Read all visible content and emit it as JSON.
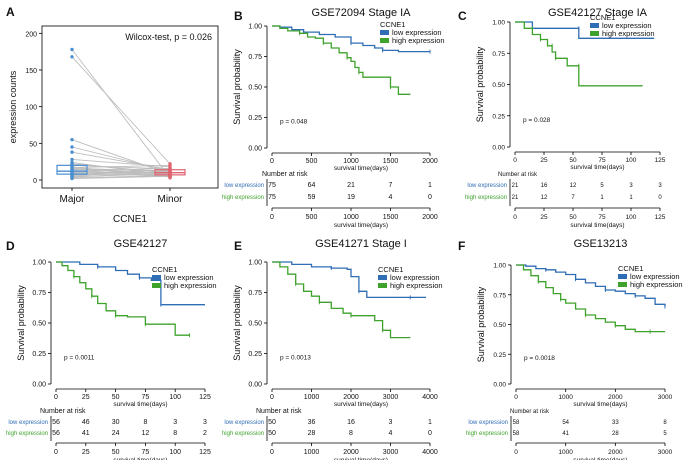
{
  "colors": {
    "low": "#2f6db5",
    "high": "#3ea22c",
    "major": "#4a90d0",
    "minor": "#e06470",
    "line": "#bdbdbd",
    "axis": "#000000"
  },
  "chart_data": [
    {
      "panel": "A",
      "type": "paired-boxplot",
      "title": "",
      "annotation": "Wilcox-test, p = 0.026",
      "xlabel": "CCNE1",
      "ylabel": "expression counts",
      "categories": [
        "Major",
        "Minor"
      ],
      "ylim": [
        0,
        210
      ],
      "yticks": [
        0,
        50,
        100,
        150,
        200
      ],
      "pairs": [
        [
          178,
          3
        ],
        [
          168,
          22
        ],
        [
          55,
          8
        ],
        [
          45,
          12
        ],
        [
          38,
          14
        ],
        [
          28,
          18
        ],
        [
          24,
          6
        ],
        [
          22,
          10
        ],
        [
          20,
          15
        ],
        [
          18,
          4
        ],
        [
          17,
          20
        ],
        [
          16,
          12
        ],
        [
          15,
          9
        ],
        [
          14,
          13
        ],
        [
          13,
          7
        ],
        [
          12,
          16
        ],
        [
          11,
          10
        ],
        [
          10,
          5
        ],
        [
          9,
          11
        ],
        [
          8,
          14
        ],
        [
          7,
          9
        ],
        [
          6,
          12
        ],
        [
          5,
          8
        ],
        [
          4,
          10
        ],
        [
          3,
          6
        ],
        [
          2,
          5
        ]
      ],
      "box_major": {
        "q1": 8,
        "median": 12,
        "q3": 20,
        "whisker_low": 2,
        "whisker_high": 24
      },
      "box_minor": {
        "q1": 7,
        "median": 10,
        "q3": 14,
        "whisker_low": 3,
        "whisker_high": 22
      }
    },
    {
      "panel": "B",
      "type": "line",
      "title": "GSE72094 Stage IA",
      "xlabel": "survival time(days)",
      "ylabel": "Survival probability",
      "xlim": [
        0,
        2000
      ],
      "xticks": [
        0,
        500,
        1000,
        1500,
        2000
      ],
      "ylim": [
        0,
        1
      ],
      "yticks": [
        "0.00",
        "0.25",
        "0.50",
        "0.75",
        "1.00"
      ],
      "legend_title": "CCNE1",
      "legend": [
        "low expression",
        "high expression"
      ],
      "pvalue": "p = 0.048",
      "series": [
        {
          "name": "low expression",
          "points": [
            [
              0,
              1
            ],
            [
              100,
              0.99
            ],
            [
              250,
              0.97
            ],
            [
              400,
              0.95
            ],
            [
              600,
              0.93
            ],
            [
              800,
              0.91
            ],
            [
              1000,
              0.86
            ],
            [
              1150,
              0.84
            ],
            [
              1300,
              0.82
            ],
            [
              1400,
              0.8
            ],
            [
              1600,
              0.79
            ],
            [
              1800,
              0.79
            ],
            [
              2000,
              0.79
            ]
          ]
        },
        {
          "name": "high expression",
          "points": [
            [
              0,
              1
            ],
            [
              100,
              0.98
            ],
            [
              200,
              0.96
            ],
            [
              350,
              0.94
            ],
            [
              450,
              0.91
            ],
            [
              550,
              0.9
            ],
            [
              650,
              0.86
            ],
            [
              750,
              0.82
            ],
            [
              850,
              0.78
            ],
            [
              950,
              0.74
            ],
            [
              1000,
              0.71
            ],
            [
              1050,
              0.66
            ],
            [
              1100,
              0.62
            ],
            [
              1150,
              0.58
            ],
            [
              1400,
              0.58
            ],
            [
              1500,
              0.5
            ],
            [
              1600,
              0.44
            ],
            [
              1750,
              0.44
            ]
          ]
        }
      ],
      "risk_table": {
        "title": "Number at risk",
        "rows": [
          {
            "label": "low expression",
            "values": [
              "75",
              "64",
              "21",
              "7",
              "1"
            ]
          },
          {
            "label": "high expression",
            "values": [
              "75",
              "59",
              "19",
              "4",
              "0"
            ]
          }
        ]
      }
    },
    {
      "panel": "C",
      "type": "line",
      "title": "GSE42127 Stage IA",
      "xlabel": "survival time(days)",
      "ylabel": "Survival probability",
      "xlim": [
        0,
        125
      ],
      "xticks": [
        0,
        25,
        50,
        75,
        100,
        125
      ],
      "ylim": [
        0,
        1
      ],
      "yticks": [
        "0.00",
        "0.25",
        "0.50",
        "0.75",
        "1.00"
      ],
      "legend_title": "CCNE1",
      "legend": [
        "low expression",
        "high expression"
      ],
      "pvalue": "p = 0.028",
      "series": [
        {
          "name": "low expression",
          "points": [
            [
              0,
              1
            ],
            [
              15,
              1
            ],
            [
              15,
              0.95
            ],
            [
              55,
              0.95
            ],
            [
              55,
              0.87
            ],
            [
              120,
              0.87
            ]
          ]
        },
        {
          "name": "high expression",
          "points": [
            [
              0,
              1
            ],
            [
              8,
              1
            ],
            [
              8,
              0.95
            ],
            [
              15,
              0.95
            ],
            [
              15,
              0.9
            ],
            [
              22,
              0.9
            ],
            [
              22,
              0.86
            ],
            [
              28,
              0.86
            ],
            [
              28,
              0.81
            ],
            [
              32,
              0.81
            ],
            [
              32,
              0.76
            ],
            [
              35,
              0.76
            ],
            [
              35,
              0.71
            ],
            [
              45,
              0.71
            ],
            [
              45,
              0.65
            ],
            [
              55,
              0.65
            ],
            [
              55,
              0.49
            ],
            [
              110,
              0.49
            ]
          ]
        }
      ],
      "risk_table": {
        "title": "Number at risk",
        "rows": [
          {
            "label": "low expression",
            "values": [
              "21",
              "16",
              "12",
              "5",
              "3",
              "3"
            ]
          },
          {
            "label": "high expression",
            "values": [
              "21",
              "12",
              "7",
              "1",
              "1",
              "0"
            ]
          }
        ]
      }
    },
    {
      "panel": "D",
      "type": "line",
      "title": "GSE42127",
      "xlabel": "survival time(days)",
      "ylabel": "Survival probability",
      "xlim": [
        0,
        125
      ],
      "xticks": [
        0,
        25,
        50,
        75,
        100,
        125
      ],
      "ylim": [
        0,
        1
      ],
      "yticks": [
        "0.00",
        "0.25",
        "0.50",
        "0.75",
        "1.00"
      ],
      "legend_title": "CCNE1",
      "legend": [
        "low expression",
        "high expression"
      ],
      "pvalue": "p = 0.0011",
      "series": [
        {
          "name": "low expression",
          "points": [
            [
              0,
              1
            ],
            [
              20,
              1
            ],
            [
              20,
              0.98
            ],
            [
              35,
              0.96
            ],
            [
              50,
              0.93
            ],
            [
              60,
              0.9
            ],
            [
              70,
              0.87
            ],
            [
              80,
              0.85
            ],
            [
              88,
              0.85
            ],
            [
              88,
              0.65
            ],
            [
              125,
              0.65
            ]
          ]
        },
        {
          "name": "high expression",
          "points": [
            [
              0,
              1
            ],
            [
              5,
              0.97
            ],
            [
              10,
              0.93
            ],
            [
              15,
              0.88
            ],
            [
              20,
              0.83
            ],
            [
              25,
              0.78
            ],
            [
              30,
              0.72
            ],
            [
              35,
              0.66
            ],
            [
              42,
              0.6
            ],
            [
              50,
              0.56
            ],
            [
              60,
              0.55
            ],
            [
              75,
              0.55
            ],
            [
              75,
              0.49
            ],
            [
              95,
              0.49
            ],
            [
              100,
              0.4
            ],
            [
              112,
              0.4
            ]
          ]
        }
      ],
      "risk_table": {
        "title": "Number at risk",
        "rows": [
          {
            "label": "low expression",
            "values": [
              "56",
              "46",
              "30",
              "8",
              "3",
              "3"
            ]
          },
          {
            "label": "high expression",
            "values": [
              "56",
              "41",
              "24",
              "12",
              "8",
              "2"
            ]
          }
        ]
      }
    },
    {
      "panel": "E",
      "type": "line",
      "title": "GSE41271 Stage I",
      "xlabel": "survival time(days)",
      "ylabel": "Survival probability",
      "xlim": [
        0,
        4000
      ],
      "xticks": [
        0,
        1000,
        2000,
        3000,
        4000
      ],
      "ylim": [
        0,
        1
      ],
      "yticks": [
        "0.00",
        "0.25",
        "0.50",
        "0.75",
        "1.00"
      ],
      "legend_title": "CCNE1",
      "legend": [
        "low expression",
        "high expression"
      ],
      "pvalue": "p = 0.0013",
      "series": [
        {
          "name": "low expression",
          "points": [
            [
              0,
              1
            ],
            [
              500,
              0.98
            ],
            [
              1000,
              0.96
            ],
            [
              1500,
              0.95
            ],
            [
              1900,
              0.94
            ],
            [
              2000,
              0.88
            ],
            [
              2200,
              0.76
            ],
            [
              2400,
              0.71
            ],
            [
              3000,
              0.71
            ],
            [
              3500,
              0.71
            ],
            [
              3900,
              0.71
            ]
          ]
        },
        {
          "name": "high expression",
          "points": [
            [
              0,
              1
            ],
            [
              200,
              0.96
            ],
            [
              400,
              0.9
            ],
            [
              600,
              0.82
            ],
            [
              800,
              0.76
            ],
            [
              1000,
              0.72
            ],
            [
              1200,
              0.67
            ],
            [
              1500,
              0.62
            ],
            [
              1800,
              0.58
            ],
            [
              2000,
              0.56
            ],
            [
              2400,
              0.56
            ],
            [
              2600,
              0.52
            ],
            [
              2800,
              0.44
            ],
            [
              3000,
              0.38
            ],
            [
              3500,
              0.38
            ]
          ]
        }
      ],
      "risk_table": {
        "title": "Number at risk",
        "rows": [
          {
            "label": "low expression",
            "values": [
              "50",
              "36",
              "16",
              "3",
              "1"
            ]
          },
          {
            "label": "high expression",
            "values": [
              "50",
              "28",
              "8",
              "4",
              "0"
            ]
          }
        ]
      }
    },
    {
      "panel": "F",
      "type": "line",
      "title": "GSE13213",
      "xlabel": "survival time(days)",
      "ylabel": "Survival probability",
      "xlim": [
        0,
        3000
      ],
      "xticks": [
        0,
        1000,
        2000,
        3000
      ],
      "ylim": [
        0,
        1
      ],
      "yticks": [
        "0.00",
        "0.25",
        "0.50",
        "0.75",
        "1.00"
      ],
      "legend_title": "CCNE1",
      "legend": [
        "low expression",
        "high expression"
      ],
      "pvalue": "p = 0.0018",
      "series": [
        {
          "name": "low expression",
          "points": [
            [
              0,
              1
            ],
            [
              200,
              0.99
            ],
            [
              400,
              0.97
            ],
            [
              600,
              0.96
            ],
            [
              800,
              0.94
            ],
            [
              1000,
              0.92
            ],
            [
              1200,
              0.88
            ],
            [
              1400,
              0.85
            ],
            [
              1600,
              0.82
            ],
            [
              1800,
              0.79
            ],
            [
              2000,
              0.78
            ],
            [
              2200,
              0.76
            ],
            [
              2400,
              0.74
            ],
            [
              2600,
              0.72
            ],
            [
              2800,
              0.67
            ],
            [
              3000,
              0.65
            ]
          ]
        },
        {
          "name": "high expression",
          "points": [
            [
              0,
              1
            ],
            [
              150,
              0.96
            ],
            [
              300,
              0.91
            ],
            [
              450,
              0.86
            ],
            [
              600,
              0.81
            ],
            [
              750,
              0.76
            ],
            [
              900,
              0.71
            ],
            [
              1000,
              0.68
            ],
            [
              1200,
              0.63
            ],
            [
              1400,
              0.58
            ],
            [
              1600,
              0.55
            ],
            [
              1800,
              0.52
            ],
            [
              2000,
              0.49
            ],
            [
              2200,
              0.46
            ],
            [
              2400,
              0.44
            ],
            [
              2700,
              0.44
            ],
            [
              3000,
              0.44
            ]
          ]
        }
      ],
      "risk_table": {
        "title": "Number at risk",
        "rows": [
          {
            "label": "low expression",
            "values": [
              "58",
              "54",
              "33",
              "8"
            ]
          },
          {
            "label": "high expression",
            "values": [
              "58",
              "41",
              "28",
              "5"
            ]
          }
        ]
      }
    }
  ]
}
